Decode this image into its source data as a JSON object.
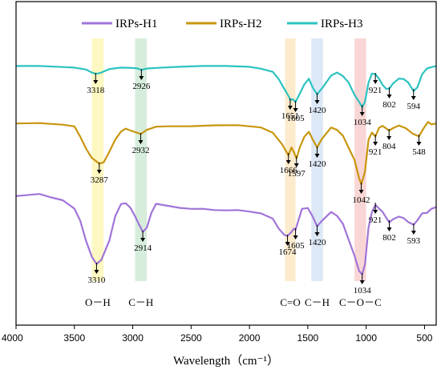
{
  "chart_data": {
    "type": "line",
    "xlabel": "Wavelength（cm⁻¹）",
    "ylabel": "",
    "xlim": [
      4000,
      400
    ],
    "x_reversed": true,
    "x_ticks": [
      4000,
      3500,
      3000,
      2500,
      2000,
      1500,
      1000,
      500
    ],
    "x_tick_labels": [
      "4000",
      "3500",
      "3000",
      "2500",
      "2000",
      "1500",
      "1000",
      "500"
    ],
    "grid": false,
    "legend_position": "top",
    "bands": [
      {
        "center": 3300,
        "width": 100,
        "color": "#fdf6b6",
        "label": "O－H"
      },
      {
        "center": 2930,
        "width": 100,
        "color": "#cfead5",
        "label": "C－H"
      },
      {
        "center": 1650,
        "width": 90,
        "color": "#fde8c4",
        "label": "C=O"
      },
      {
        "center": 1420,
        "width": 100,
        "color": "#d6e4f4",
        "label": "C－H"
      },
      {
        "center": 1050,
        "width": 100,
        "color": "#f8cfcf",
        "label": "C－O－C"
      }
    ],
    "series": [
      {
        "name": "IRPs-H1",
        "color": "#a074d8",
        "offset": 245,
        "points": [
          [
            4000,
            0
          ],
          [
            3800,
            -2
          ],
          [
            3700,
            2
          ],
          [
            3600,
            5
          ],
          [
            3500,
            15
          ],
          [
            3450,
            30
          ],
          [
            3400,
            55
          ],
          [
            3350,
            75
          ],
          [
            3310,
            85
          ],
          [
            3270,
            80
          ],
          [
            3200,
            55
          ],
          [
            3150,
            25
          ],
          [
            3100,
            10
          ],
          [
            3060,
            8
          ],
          [
            3020,
            15
          ],
          [
            2980,
            25
          ],
          [
            2950,
            35
          ],
          [
            2914,
            45
          ],
          [
            2880,
            40
          ],
          [
            2840,
            20
          ],
          [
            2800,
            10
          ],
          [
            2700,
            12
          ],
          [
            2600,
            14
          ],
          [
            2500,
            15
          ],
          [
            2400,
            15
          ],
          [
            2300,
            17
          ],
          [
            2200,
            18
          ],
          [
            2100,
            18
          ],
          [
            2000,
            20
          ],
          [
            1900,
            22
          ],
          [
            1800,
            28
          ],
          [
            1750,
            40
          ],
          [
            1700,
            48
          ],
          [
            1674,
            50
          ],
          [
            1640,
            45
          ],
          [
            1620,
            40
          ],
          [
            1605,
            42
          ],
          [
            1580,
            30
          ],
          [
            1550,
            15
          ],
          [
            1500,
            14
          ],
          [
            1460,
            25
          ],
          [
            1420,
            38
          ],
          [
            1380,
            30
          ],
          [
            1300,
            20
          ],
          [
            1250,
            25
          ],
          [
            1200,
            35
          ],
          [
            1150,
            55
          ],
          [
            1100,
            75
          ],
          [
            1060,
            93
          ],
          [
            1034,
            98
          ],
          [
            1010,
            85
          ],
          [
            980,
            40
          ],
          [
            950,
            20
          ],
          [
            921,
            10
          ],
          [
            890,
            15
          ],
          [
            860,
            20
          ],
          [
            830,
            27
          ],
          [
            802,
            32
          ],
          [
            770,
            28
          ],
          [
            720,
            25
          ],
          [
            680,
            27
          ],
          [
            640,
            33
          ],
          [
            593,
            36
          ],
          [
            560,
            30
          ],
          [
            520,
            22
          ],
          [
            480,
            20
          ],
          [
            440,
            16
          ],
          [
            400,
            14
          ]
        ],
        "peak_labels": [
          {
            "x": 3310,
            "label": "3310"
          },
          {
            "x": 2914,
            "label": "2914"
          },
          {
            "x": 1674,
            "label": "1674"
          },
          {
            "x": 1605,
            "label": "1605"
          },
          {
            "x": 1420,
            "label": "1420"
          },
          {
            "x": 1034,
            "label": "1034"
          },
          {
            "x": 921,
            "label": "921"
          },
          {
            "x": 802,
            "label": "802"
          },
          {
            "x": 593,
            "label": "593"
          }
        ]
      },
      {
        "name": "IRPs-H2",
        "color": "#c8960e",
        "offset": 155,
        "points": [
          [
            4000,
            0
          ],
          [
            3800,
            -1
          ],
          [
            3600,
            0
          ],
          [
            3500,
            2
          ],
          [
            3450,
            15
          ],
          [
            3400,
            30
          ],
          [
            3350,
            42
          ],
          [
            3287,
            50
          ],
          [
            3250,
            48
          ],
          [
            3200,
            35
          ],
          [
            3150,
            20
          ],
          [
            3100,
            10
          ],
          [
            3060,
            5
          ],
          [
            3020,
            8
          ],
          [
            2970,
            10
          ],
          [
            2932,
            13
          ],
          [
            2880,
            8
          ],
          [
            2800,
            3
          ],
          [
            2700,
            2
          ],
          [
            2500,
            2
          ],
          [
            2300,
            2
          ],
          [
            2100,
            2
          ],
          [
            2000,
            3
          ],
          [
            1900,
            4
          ],
          [
            1800,
            10
          ],
          [
            1720,
            25
          ],
          [
            1680,
            35
          ],
          [
            1666,
            38
          ],
          [
            1640,
            30
          ],
          [
            1620,
            35
          ],
          [
            1597,
            42
          ],
          [
            1570,
            30
          ],
          [
            1530,
            15
          ],
          [
            1490,
            10
          ],
          [
            1460,
            18
          ],
          [
            1420,
            30
          ],
          [
            1380,
            18
          ],
          [
            1300,
            5
          ],
          [
            1250,
            8
          ],
          [
            1200,
            15
          ],
          [
            1150,
            30
          ],
          [
            1100,
            45
          ],
          [
            1060,
            68
          ],
          [
            1042,
            75
          ],
          [
            1010,
            60
          ],
          [
            980,
            20
          ],
          [
            950,
            10
          ],
          [
            921,
            15
          ],
          [
            890,
            5
          ],
          [
            860,
            3
          ],
          [
            830,
            5
          ],
          [
            804,
            8
          ],
          [
            770,
            5
          ],
          [
            720,
            2
          ],
          [
            660,
            5
          ],
          [
            600,
            12
          ],
          [
            548,
            15
          ],
          [
            510,
            5
          ],
          [
            470,
            -2
          ],
          [
            440,
            0
          ],
          [
            400,
            0
          ]
        ],
        "peak_labels": [
          {
            "x": 3287,
            "label": "3287"
          },
          {
            "x": 2932,
            "label": "2932"
          },
          {
            "x": 1666,
            "label": "1666"
          },
          {
            "x": 1597,
            "label": "1597"
          },
          {
            "x": 1420,
            "label": "1420"
          },
          {
            "x": 1042,
            "label": "1042"
          },
          {
            "x": 921,
            "label": "921"
          },
          {
            "x": 804,
            "label": "804"
          },
          {
            "x": 548,
            "label": "548"
          }
        ]
      },
      {
        "name": "IRPs-H3",
        "color": "#2cc3c0",
        "offset": 83,
        "points": [
          [
            4000,
            0
          ],
          [
            3800,
            -1
          ],
          [
            3600,
            0
          ],
          [
            3500,
            1
          ],
          [
            3400,
            4
          ],
          [
            3350,
            8
          ],
          [
            3318,
            10
          ],
          [
            3280,
            8
          ],
          [
            3200,
            4
          ],
          [
            3100,
            2
          ],
          [
            3000,
            2
          ],
          [
            2960,
            3
          ],
          [
            2926,
            5
          ],
          [
            2880,
            3
          ],
          [
            2800,
            1
          ],
          [
            2600,
            0
          ],
          [
            2400,
            0
          ],
          [
            2200,
            0
          ],
          [
            2000,
            0
          ],
          [
            1900,
            2
          ],
          [
            1800,
            6
          ],
          [
            1750,
            15
          ],
          [
            1700,
            28
          ],
          [
            1660,
            38
          ],
          [
            1651,
            42
          ],
          [
            1630,
            40
          ],
          [
            1605,
            45
          ],
          [
            1570,
            35
          ],
          [
            1530,
            22
          ],
          [
            1490,
            15
          ],
          [
            1460,
            25
          ],
          [
            1420,
            35
          ],
          [
            1380,
            28
          ],
          [
            1300,
            12
          ],
          [
            1250,
            8
          ],
          [
            1200,
            12
          ],
          [
            1150,
            20
          ],
          [
            1100,
            35
          ],
          [
            1060,
            45
          ],
          [
            1034,
            50
          ],
          [
            1010,
            45
          ],
          [
            980,
            20
          ],
          [
            950,
            8
          ],
          [
            921,
            10
          ],
          [
            890,
            16
          ],
          [
            860,
            23
          ],
          [
            830,
            27
          ],
          [
            802,
            28
          ],
          [
            770,
            22
          ],
          [
            720,
            16
          ],
          [
            680,
            15
          ],
          [
            640,
            20
          ],
          [
            594,
            30
          ],
          [
            560,
            25
          ],
          [
            520,
            10
          ],
          [
            480,
            3
          ],
          [
            440,
            0
          ],
          [
            400,
            0
          ]
        ],
        "peak_labels": [
          {
            "x": 3318,
            "label": "3318"
          },
          {
            "x": 2926,
            "label": "2926"
          },
          {
            "x": 1651,
            "label": "1651"
          },
          {
            "x": 1605,
            "label": "1605"
          },
          {
            "x": 1420,
            "label": "1420"
          },
          {
            "x": 1034,
            "label": "1034"
          },
          {
            "x": 921,
            "label": "921"
          },
          {
            "x": 802,
            "label": "802"
          },
          {
            "x": 594,
            "label": "594"
          }
        ]
      }
    ]
  }
}
